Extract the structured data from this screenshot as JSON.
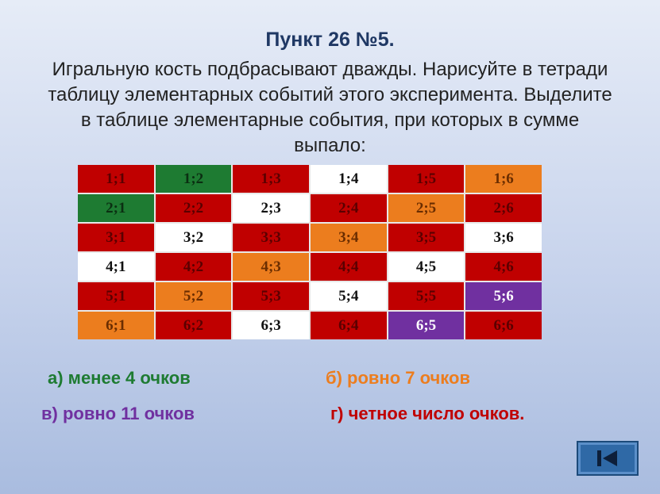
{
  "title": "Пункт 26 №5.",
  "task": "Игральную кость подбрасывают дважды. Нарисуйте в тетради таблицу элементарных событий этого эксперимента. Выделите в таблице элементарные события, при которых в сумме выпало:",
  "colors": {
    "red": "#c00000",
    "green": "#1e7b32",
    "orange": "#ec7d1e",
    "purple": "#7030a0",
    "white": "#ffffff"
  },
  "table": [
    [
      {
        "text": "1;1",
        "color": "red"
      },
      {
        "text": "1;2",
        "color": "green"
      },
      {
        "text": "1;3",
        "color": "red"
      },
      {
        "text": "1;4",
        "color": "white"
      },
      {
        "text": "1;5",
        "color": "red"
      },
      {
        "text": "1;6",
        "color": "orange"
      }
    ],
    [
      {
        "text": "2;1",
        "color": "green"
      },
      {
        "text": "2;2",
        "color": "red"
      },
      {
        "text": "2;3",
        "color": "white"
      },
      {
        "text": "2;4",
        "color": "red"
      },
      {
        "text": "2;5",
        "color": "orange"
      },
      {
        "text": "2;6",
        "color": "red"
      }
    ],
    [
      {
        "text": "3;1",
        "color": "red"
      },
      {
        "text": "3;2",
        "color": "white"
      },
      {
        "text": "3;3",
        "color": "red"
      },
      {
        "text": "3;4",
        "color": "orange"
      },
      {
        "text": "3;5",
        "color": "red"
      },
      {
        "text": "3;6",
        "color": "white"
      }
    ],
    [
      {
        "text": "4;1",
        "color": "white"
      },
      {
        "text": "4;2",
        "color": "red"
      },
      {
        "text": "4;3",
        "color": "orange"
      },
      {
        "text": "4;4",
        "color": "red"
      },
      {
        "text": "4;5",
        "color": "white"
      },
      {
        "text": "4;6",
        "color": "red"
      }
    ],
    [
      {
        "text": "5;1",
        "color": "red"
      },
      {
        "text": "5;2",
        "color": "orange"
      },
      {
        "text": "5;3",
        "color": "red"
      },
      {
        "text": "5;4",
        "color": "white"
      },
      {
        "text": "5;5",
        "color": "red"
      },
      {
        "text": "5;6",
        "color": "purple"
      }
    ],
    [
      {
        "text": "6;1",
        "color": "orange"
      },
      {
        "text": "6;2",
        "color": "red"
      },
      {
        "text": "6;3",
        "color": "white"
      },
      {
        "text": "6;4",
        "color": "red"
      },
      {
        "text": "6;5",
        "color": "purple"
      },
      {
        "text": "6;6",
        "color": "red"
      }
    ]
  ],
  "answers": {
    "a": {
      "text": "а) менее 4 очков",
      "color": "#1e7b32"
    },
    "b": {
      "text": "б) ровно 7 очков",
      "color": "#ec7d1e"
    },
    "c": {
      "text": "в) ровно 11 очков",
      "color": "#7030a0"
    },
    "d": {
      "text": "г) четное число очков.",
      "color": "#c00000"
    }
  },
  "nav": {
    "icon": "first-slide-icon"
  }
}
